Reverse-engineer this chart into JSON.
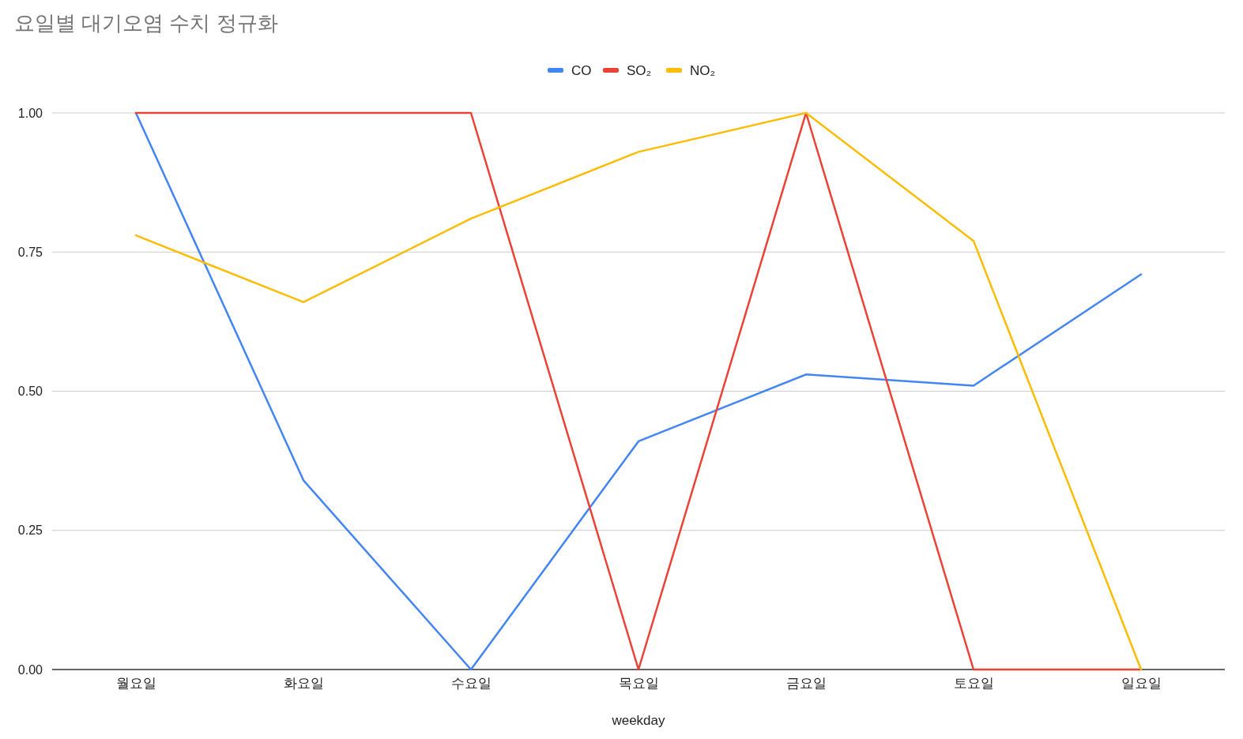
{
  "chart_data": {
    "type": "line",
    "title": "요일별 대기오염 수치 정규화",
    "xlabel": "weekday",
    "categories": [
      "월요일",
      "화요일",
      "수요일",
      "목요일",
      "금요일",
      "토요일",
      "일요일"
    ],
    "series": [
      {
        "name": "CO",
        "color": "#4285f4",
        "values": [
          1.0,
          0.34,
          0.0,
          0.41,
          0.53,
          0.51,
          0.71
        ]
      },
      {
        "name": "SO₂",
        "color": "#ea4335",
        "values": [
          1.0,
          1.0,
          1.0,
          0.0,
          1.0,
          0.0,
          0.0
        ]
      },
      {
        "name": "NO₂",
        "color": "#fbbc04",
        "values": [
          0.78,
          0.66,
          0.81,
          0.93,
          1.0,
          0.77,
          0.0
        ]
      }
    ],
    "ylim": [
      0,
      1
    ],
    "yticks": [
      {
        "value": 0,
        "label": "0.00"
      },
      {
        "value": 0.25,
        "label": "0.25"
      },
      {
        "value": 0.5,
        "label": "0.50"
      },
      {
        "value": 0.75,
        "label": "0.75"
      },
      {
        "value": 1,
        "label": "1.00"
      }
    ],
    "grid": "y",
    "legend": "top",
    "marker": "none",
    "line_style": "solid"
  }
}
